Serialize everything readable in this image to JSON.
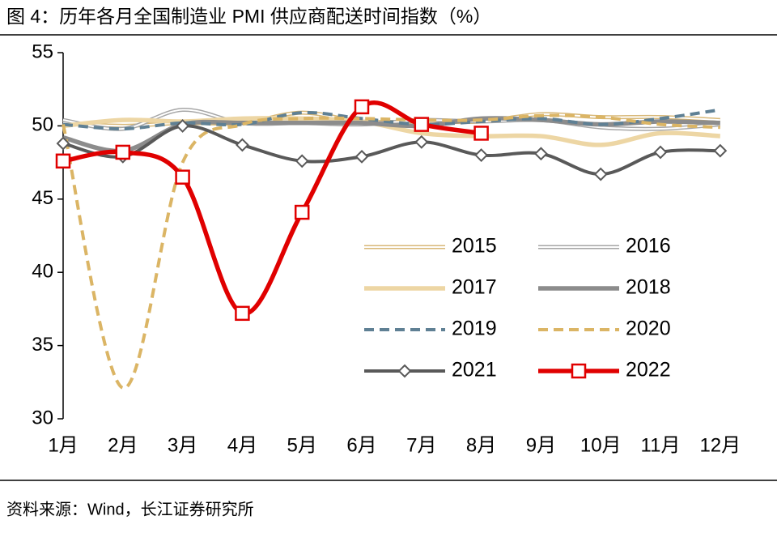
{
  "chart_data": {
    "type": "line",
    "title": "图 4：历年各月全国制造业 PMI 供应商配送时间指数（%）",
    "source": "资料来源：Wind，长江证券研究所",
    "categories": [
      "1月",
      "2月",
      "3月",
      "4月",
      "5月",
      "6月",
      "7月",
      "8月",
      "9月",
      "10月",
      "11月",
      "12月"
    ],
    "ylim": [
      30,
      55
    ],
    "yticks": [
      30,
      35,
      40,
      45,
      50,
      55
    ],
    "legend": "center-right",
    "series": [
      {
        "name": "2015",
        "color": "#d8b878",
        "line_style": "double",
        "values": [
          50.2,
          50.0,
          50.2,
          50.2,
          50.9,
          50.3,
          50.3,
          50.3,
          50.8,
          50.6,
          50.6,
          50.4
        ]
      },
      {
        "name": "2016",
        "color": "#a6a6a6",
        "line_style": "double",
        "values": [
          50.4,
          49.8,
          51.1,
          50.2,
          50.2,
          50.1,
          50.4,
          50.3,
          50.4,
          49.9,
          49.8,
          50.1
        ]
      },
      {
        "name": "2017",
        "color": "#edd6a4",
        "line_style": "thick",
        "values": [
          50.0,
          50.4,
          50.3,
          50.5,
          50.5,
          50.3,
          49.5,
          49.3,
          49.3,
          48.7,
          49.5,
          49.3
        ]
      },
      {
        "name": "2018",
        "color": "#8c8c8c",
        "line_style": "thick",
        "values": [
          49.2,
          48.3,
          50.1,
          50.2,
          50.2,
          50.2,
          50.0,
          50.5,
          50.4,
          50.1,
          50.3,
          50.2
        ]
      },
      {
        "name": "2019",
        "color": "#5f8094",
        "line_style": "dashed",
        "values": [
          50.1,
          49.8,
          50.2,
          50.1,
          50.9,
          50.5,
          50.1,
          50.3,
          50.5,
          50.1,
          50.5,
          51.1
        ]
      },
      {
        "name": "2020",
        "color": "#dbb565",
        "line_style": "dashed",
        "values": [
          50.1,
          32.1,
          47.5,
          50.1,
          50.5,
          50.5,
          50.4,
          50.4,
          50.7,
          50.6,
          50.1,
          49.9
        ]
      },
      {
        "name": "2021",
        "color": "#595959",
        "line_style": "solid",
        "marker": "diamond",
        "values": [
          48.8,
          47.9,
          50.0,
          48.7,
          47.6,
          47.9,
          48.9,
          48.0,
          48.1,
          46.7,
          48.2,
          48.3
        ]
      },
      {
        "name": "2022",
        "color": "#e00000",
        "line_style": "thick",
        "marker": "square",
        "values": [
          47.6,
          48.2,
          46.5,
          37.2,
          44.1,
          51.3,
          50.1,
          49.5,
          null,
          null,
          null,
          null
        ]
      }
    ]
  }
}
